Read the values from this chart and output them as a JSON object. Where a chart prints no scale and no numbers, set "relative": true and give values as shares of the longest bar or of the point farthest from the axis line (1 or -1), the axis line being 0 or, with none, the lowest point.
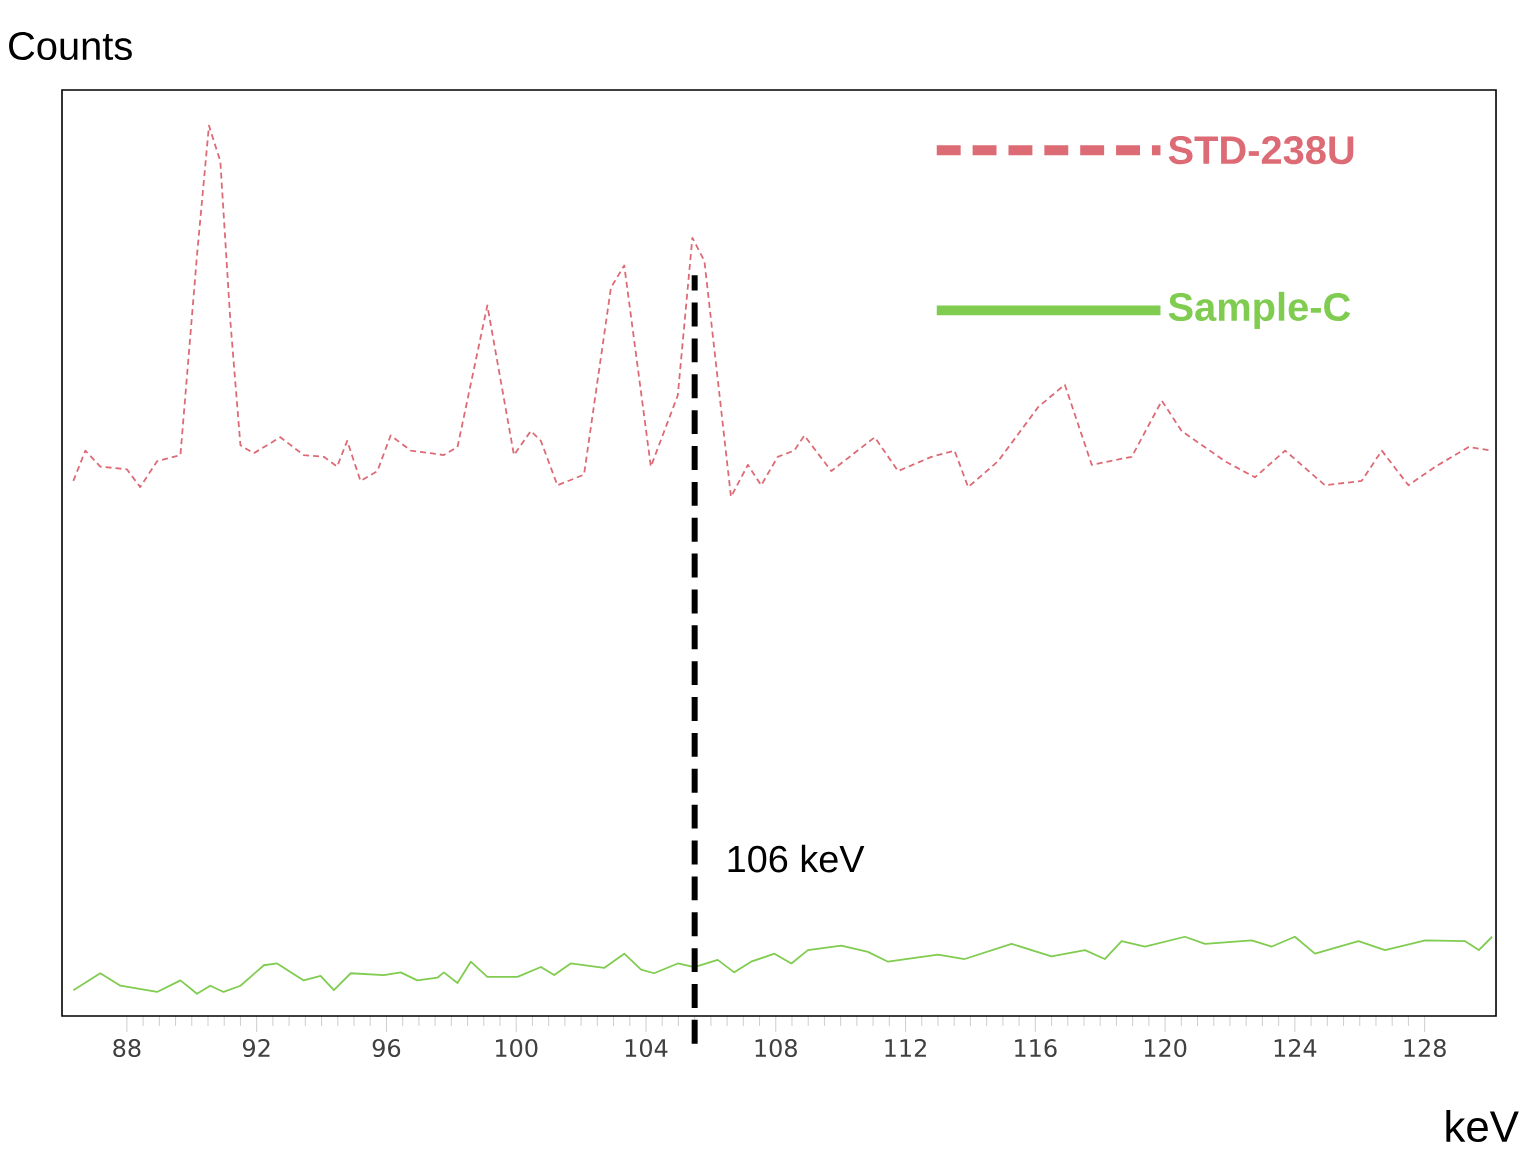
{
  "chart_data": {
    "type": "line",
    "xlabel": "keV",
    "ylabel": "Counts",
    "relative": true,
    "xlim": [
      86,
      130.2
    ],
    "xticks": [
      88,
      92,
      96,
      100,
      104,
      108,
      112,
      116,
      120,
      124,
      128
    ],
    "legend": "top right",
    "ref_lines": [
      {
        "axis": "x",
        "value": 105.5,
        "label": "106 keV",
        "color": "#000000",
        "line_style": "dashed"
      }
    ],
    "series": [
      {
        "name": "STD-238U",
        "color": "#dd6b75",
        "line_style": "dashed",
        "x": [
          86.35,
          86.72,
          87.18,
          88.0,
          88.41,
          88.93,
          89.65,
          90.16,
          90.53,
          90.88,
          91.19,
          91.5,
          91.91,
          92.73,
          93.45,
          94.07,
          94.48,
          94.79,
          95.2,
          95.72,
          96.13,
          96.75,
          97.77,
          98.19,
          99.11,
          99.93,
          100.45,
          100.76,
          101.27,
          102.09,
          102.92,
          103.33,
          104.15,
          104.98,
          105.43,
          105.8,
          106.62,
          107.14,
          107.55,
          108.06,
          108.57,
          108.88,
          109.71,
          111.05,
          111.77,
          112.8,
          113.51,
          113.93,
          114.85,
          116.09,
          116.91,
          117.74,
          118.97,
          119.9,
          120.51,
          121.85,
          122.77,
          123.7,
          124.93,
          126.06,
          126.68,
          127.5,
          128.33,
          129.36,
          130.08
        ],
        "values": [
          0.601,
          0.635,
          0.617,
          0.614,
          0.594,
          0.623,
          0.63,
          0.854,
          1.0,
          0.96,
          0.78,
          0.641,
          0.632,
          0.65,
          0.63,
          0.628,
          0.617,
          0.646,
          0.601,
          0.612,
          0.652,
          0.635,
          0.63,
          0.639,
          0.798,
          0.63,
          0.657,
          0.646,
          0.596,
          0.608,
          0.818,
          0.843,
          0.617,
          0.697,
          0.874,
          0.848,
          0.583,
          0.619,
          0.596,
          0.628,
          0.635,
          0.652,
          0.612,
          0.65,
          0.612,
          0.628,
          0.635,
          0.594,
          0.623,
          0.684,
          0.709,
          0.619,
          0.628,
          0.691,
          0.657,
          0.623,
          0.605,
          0.635,
          0.596,
          0.601,
          0.635,
          0.596,
          0.617,
          0.639,
          0.635
        ]
      },
      {
        "name": "Sample-C",
        "color": "#80cc50",
        "line_style": "solid",
        "x": [
          86.35,
          87.18,
          87.8,
          88.93,
          89.65,
          90.16,
          90.57,
          90.98,
          91.5,
          92.22,
          92.63,
          93.45,
          93.97,
          94.38,
          94.9,
          95.92,
          96.44,
          96.95,
          97.57,
          97.77,
          98.19,
          98.6,
          99.11,
          100.04,
          100.76,
          101.17,
          101.68,
          102.71,
          103.33,
          103.85,
          104.25,
          104.98,
          105.49,
          106.21,
          106.72,
          107.24,
          107.96,
          108.48,
          108.99,
          110.02,
          110.84,
          111.46,
          113.0,
          113.82,
          115.27,
          116.5,
          117.53,
          118.14,
          118.66,
          119.38,
          120.61,
          121.23,
          122.67,
          123.29,
          124.0,
          124.62,
          125.96,
          126.78,
          128.02,
          129.25,
          129.67,
          130.08
        ],
        "values": [
          0.029,
          0.048,
          0.034,
          0.027,
          0.04,
          0.025,
          0.034,
          0.027,
          0.034,
          0.057,
          0.059,
          0.04,
          0.045,
          0.029,
          0.048,
          0.046,
          0.049,
          0.04,
          0.043,
          0.049,
          0.037,
          0.061,
          0.044,
          0.044,
          0.055,
          0.046,
          0.059,
          0.054,
          0.07,
          0.052,
          0.048,
          0.059,
          0.055,
          0.063,
          0.049,
          0.061,
          0.07,
          0.059,
          0.074,
          0.079,
          0.072,
          0.061,
          0.069,
          0.064,
          0.081,
          0.067,
          0.074,
          0.064,
          0.084,
          0.078,
          0.089,
          0.081,
          0.085,
          0.078,
          0.089,
          0.07,
          0.084,
          0.074,
          0.085,
          0.084,
          0.074,
          0.089
        ]
      }
    ]
  }
}
